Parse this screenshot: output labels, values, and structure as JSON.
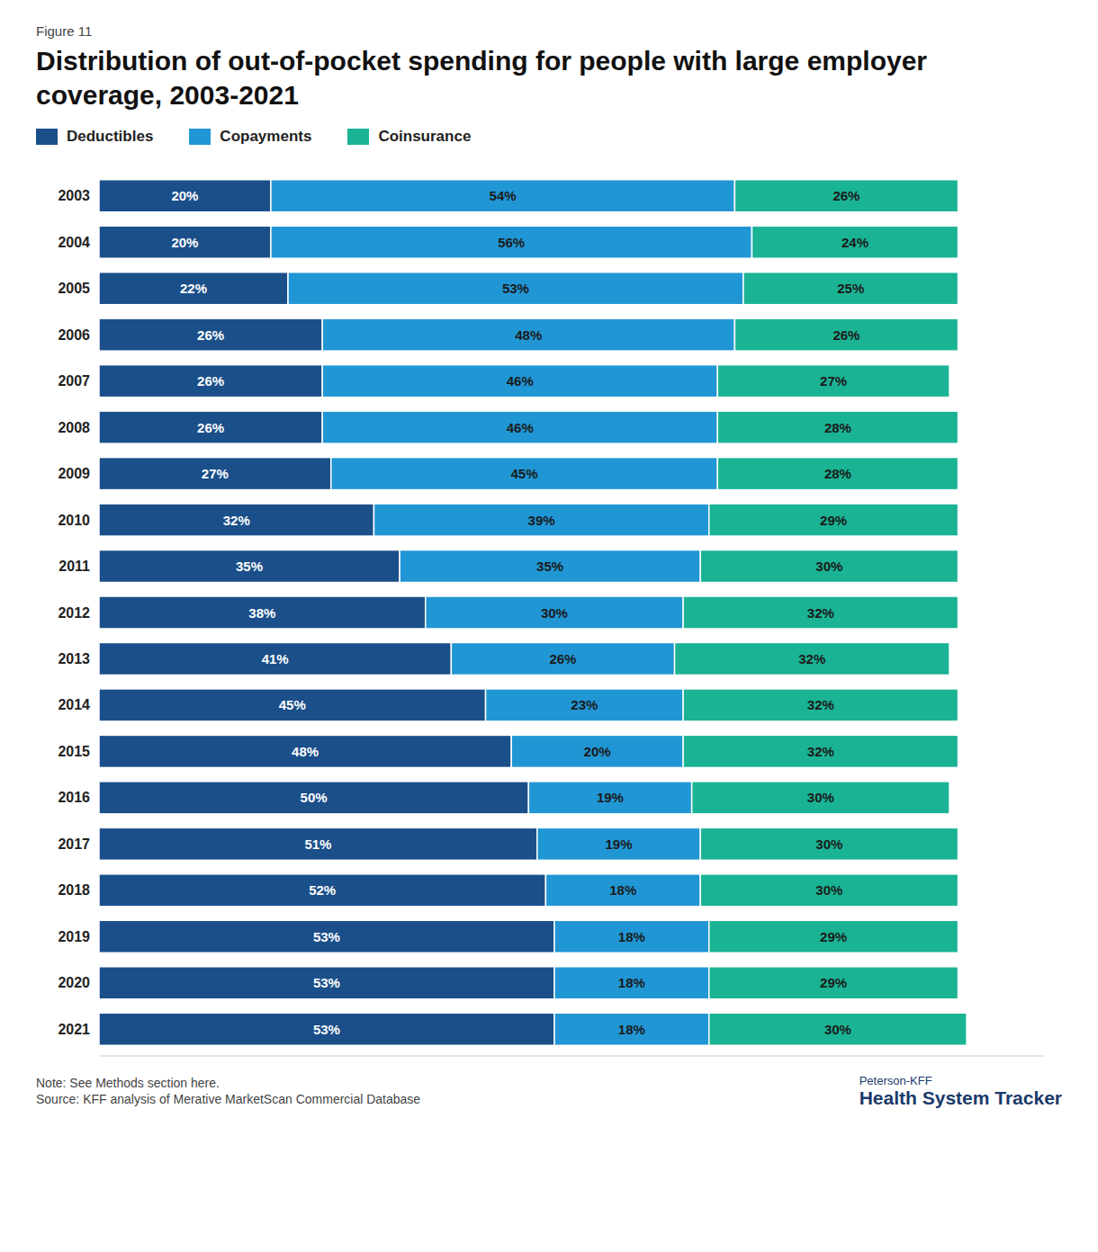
{
  "chart_data": {
    "type": "bar",
    "orientation": "horizontal",
    "stacked": true,
    "data_labels": true,
    "tick_labels": "y",
    "legend": "top",
    "title": "Distribution of out-of-pocket spending for people with large employer coverage, 2003-2021",
    "annotations": [
      "Figure 11",
      "Note: See Methods section here.",
      "Source: KFF analysis of Merative MarketScan Commercial Database",
      "Peterson-KFF",
      "Health System Tracker"
    ],
    "categories": [
      "2003",
      "2004",
      "2005",
      "2006",
      "2007",
      "2008",
      "2009",
      "2010",
      "2011",
      "2012",
      "2013",
      "2014",
      "2015",
      "2016",
      "2017",
      "2018",
      "2019",
      "2020",
      "2021"
    ],
    "xlim": [
      0,
      110
    ],
    "series": [
      {
        "name": "Deductibles",
        "color": "#1b4f8a",
        "values": [
          20,
          20,
          22,
          26,
          26,
          26,
          27,
          32,
          35,
          38,
          41,
          45,
          48,
          50,
          51,
          52,
          53,
          53,
          53
        ],
        "value_labels": [
          "20%",
          "20%",
          "22%",
          "26%",
          "26%",
          "26%",
          "27%",
          "32%",
          "35%",
          "38%",
          "41%",
          "45%",
          "48%",
          "50%",
          "51%",
          "52%",
          "53%",
          "53%",
          "53%"
        ]
      },
      {
        "name": "Copayments",
        "color": "#2196d4",
        "values": [
          54,
          56,
          53,
          48,
          46,
          46,
          45,
          39,
          35,
          30,
          26,
          23,
          20,
          19,
          19,
          18,
          18,
          18,
          18
        ],
        "value_labels": [
          "54%",
          "56%",
          "53%",
          "48%",
          "46%",
          "46%",
          "45%",
          "39%",
          "35%",
          "30%",
          "26%",
          "23%",
          "20%",
          "19%",
          "19%",
          "18%",
          "18%",
          "18%",
          "18%"
        ]
      },
      {
        "name": "Coinsurance",
        "color": "#1ab394",
        "values": [
          26,
          24,
          25,
          26,
          27,
          28,
          28,
          29,
          30,
          32,
          32,
          32,
          32,
          30,
          30,
          30,
          29,
          29,
          30
        ],
        "value_labels": [
          "26%",
          "24%",
          "25%",
          "26%",
          "27%",
          "28%",
          "28%",
          "29%",
          "30%",
          "32%",
          "32%",
          "32%",
          "32%",
          "30%",
          "30%",
          "30%",
          "29%",
          "29%",
          "30%"
        ]
      }
    ]
  }
}
